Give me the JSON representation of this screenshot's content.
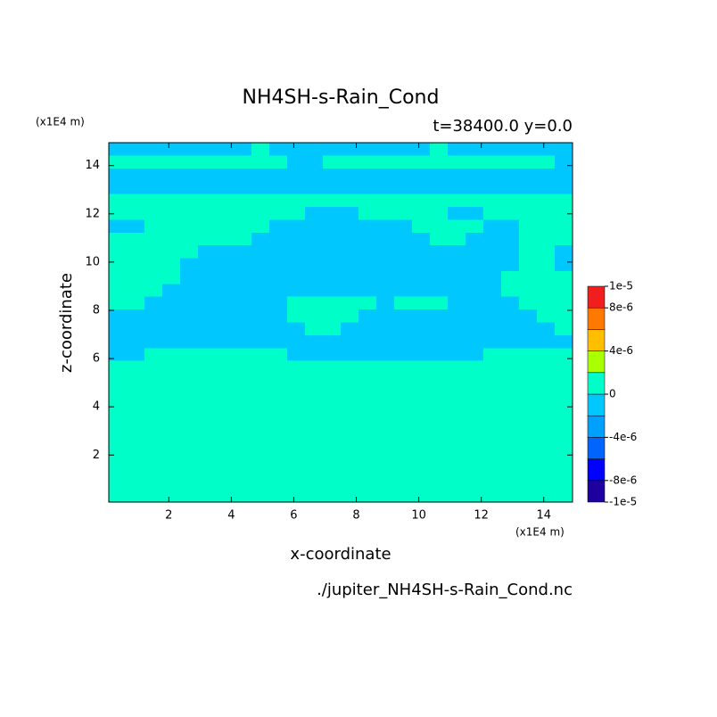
{
  "chart_data": {
    "type": "contour",
    "title": "NH4SH-s-Rain_Cond",
    "subtitle": "t=38400.0 y=0.0",
    "x_label": "x-coordinate",
    "y_label": "z-coordinate",
    "x_unit": "(x1E4 m)",
    "y_unit": "(x1E4 m)",
    "footer": "./jupiter_NH4SH-s-Rain_Cond.nc",
    "xlim": [
      0.08,
      14.92
    ],
    "ylim": [
      0.05,
      14.95
    ],
    "xticks": [
      2,
      4,
      6,
      8,
      10,
      12,
      14
    ],
    "yticks": [
      2,
      4,
      6,
      8,
      10,
      12,
      14
    ],
    "levels": [
      -1e-05,
      -8e-06,
      -6e-06,
      -4e-06,
      -2e-06,
      0,
      2e-06,
      4e-06,
      6e-06,
      8e-06,
      1e-05
    ],
    "colors": [
      "#1e00a0",
      "#0000ff",
      "#0064ff",
      "#00a0ff",
      "#00c8ff",
      "#00ffc8",
      "#aaff00",
      "#ffbe00",
      "#ff7800",
      "#f01e1e",
      "#ff5a5a"
    ],
    "cbar_ticks": [
      {
        "value": 1e-05,
        "label": "1e-5"
      },
      {
        "value": 8e-06,
        "label": "8e-6"
      },
      {
        "value": 4e-06,
        "label": "4e-6"
      },
      0,
      {
        "value": -4e-06,
        "label": "-4e-6"
      },
      {
        "value": -8e-06,
        "label": "-8e-6"
      },
      {
        "value": -1e-05,
        "label": "-1e-5"
      }
    ],
    "grid": [
      [
        -1e-06,
        -1e-06,
        -1e-06,
        -1e-06,
        -1e-06,
        -1e-06,
        -1e-06,
        -1e-06,
        1e-06,
        -1e-06,
        -1e-06,
        -1e-06,
        -1e-06,
        -1e-06,
        -1e-06,
        -1e-06,
        -1e-06,
        -1e-06,
        1e-06,
        -1e-06,
        -1e-06,
        -1e-06,
        -1e-06,
        -1e-06,
        -1e-06,
        -1e-06
      ],
      [
        1e-06,
        1e-06,
        1e-06,
        1e-06,
        1e-06,
        1e-06,
        1e-06,
        1e-06,
        1e-06,
        1e-06,
        -1e-06,
        -1e-06,
        1e-06,
        1e-06,
        1e-06,
        1e-06,
        1e-06,
        1e-06,
        1e-06,
        1e-06,
        1e-06,
        1e-06,
        1e-06,
        1e-06,
        1e-06,
        -1e-06
      ],
      [
        -1e-06,
        -1e-06,
        -1e-06,
        -1e-06,
        -1e-06,
        -1e-06,
        -1e-06,
        -1e-06,
        -1e-06,
        -1e-06,
        -1e-06,
        -1e-06,
        -1e-06,
        -1e-06,
        -1e-06,
        -1e-06,
        -1e-06,
        -1e-06,
        -1e-06,
        -1e-06,
        -1e-06,
        -1e-06,
        -1e-06,
        -1e-06,
        -1e-06,
        -1e-06
      ],
      [
        -1e-06,
        -1e-06,
        -1e-06,
        -1e-06,
        -1e-06,
        -1e-06,
        -1e-06,
        -1e-06,
        -1e-06,
        -1e-06,
        -1e-06,
        -1e-06,
        -1e-06,
        -1e-06,
        -1e-06,
        -1e-06,
        -1e-06,
        -1e-06,
        -1e-06,
        -1e-06,
        -1e-06,
        -1e-06,
        -1e-06,
        -1e-06,
        -1e-06,
        -1e-06
      ],
      [
        1e-06,
        1e-06,
        1e-06,
        1e-06,
        1e-06,
        1e-06,
        1e-06,
        1e-06,
        1e-06,
        1e-06,
        1e-06,
        1e-06,
        1e-06,
        1e-06,
        1e-06,
        1e-06,
        1e-06,
        1e-06,
        1e-06,
        1e-06,
        1e-06,
        1e-06,
        1e-06,
        1e-06,
        1e-06,
        1e-06
      ],
      [
        1e-06,
        1e-06,
        1e-06,
        1e-06,
        1e-06,
        1e-06,
        1e-06,
        1e-06,
        1e-06,
        1e-06,
        1e-06,
        -1e-06,
        -1e-06,
        -1e-06,
        1e-06,
        1e-06,
        1e-06,
        1e-06,
        1e-06,
        -1e-06,
        -1e-06,
        1e-06,
        1e-06,
        1e-06,
        1e-06,
        1e-06
      ],
      [
        -1e-06,
        -1e-06,
        1e-06,
        1e-06,
        1e-06,
        1e-06,
        1e-06,
        1e-06,
        1e-06,
        -1e-06,
        -1e-06,
        -1e-06,
        -1e-06,
        -1e-06,
        -1e-06,
        -1e-06,
        -1e-06,
        1e-06,
        1e-06,
        1e-06,
        1e-06,
        -1e-06,
        -1e-06,
        1e-06,
        1e-06,
        1e-06
      ],
      [
        1e-06,
        1e-06,
        1e-06,
        1e-06,
        1e-06,
        1e-06,
        1e-06,
        1e-06,
        -1e-06,
        -1e-06,
        -1e-06,
        -1e-06,
        -1e-06,
        -1e-06,
        -1e-06,
        -1e-06,
        -1e-06,
        -1e-06,
        1e-06,
        1e-06,
        -1e-06,
        -1e-06,
        -1e-06,
        1e-06,
        1e-06,
        1e-06
      ],
      [
        1e-06,
        1e-06,
        1e-06,
        1e-06,
        1e-06,
        -1e-06,
        -1e-06,
        -1e-06,
        -1e-06,
        -1e-06,
        -1e-06,
        -1e-06,
        -1e-06,
        -1e-06,
        -1e-06,
        -1e-06,
        -1e-06,
        -1e-06,
        -1e-06,
        -1e-06,
        -1e-06,
        -1e-06,
        -1e-06,
        1e-06,
        1e-06,
        -1e-06
      ],
      [
        1e-06,
        1e-06,
        1e-06,
        1e-06,
        -1e-06,
        -1e-06,
        -1e-06,
        -1e-06,
        -1e-06,
        -1e-06,
        -1e-06,
        -1e-06,
        -1e-06,
        -1e-06,
        -1e-06,
        -1e-06,
        -1e-06,
        -1e-06,
        -1e-06,
        -1e-06,
        -1e-06,
        -1e-06,
        -1e-06,
        1e-06,
        1e-06,
        -1e-06
      ],
      [
        1e-06,
        1e-06,
        1e-06,
        1e-06,
        -1e-06,
        -1e-06,
        -1e-06,
        -1e-06,
        -1e-06,
        -1e-06,
        -1e-06,
        -1e-06,
        -1e-06,
        -1e-06,
        -1e-06,
        -1e-06,
        -1e-06,
        -1e-06,
        -1e-06,
        -1e-06,
        -1e-06,
        -1e-06,
        1e-06,
        1e-06,
        1e-06,
        1e-06
      ],
      [
        1e-06,
        1e-06,
        1e-06,
        -1e-06,
        -1e-06,
        -1e-06,
        -1e-06,
        -1e-06,
        -1e-06,
        -1e-06,
        -1e-06,
        -1e-06,
        -1e-06,
        -1e-06,
        -1e-06,
        -1e-06,
        -1e-06,
        -1e-06,
        -1e-06,
        -1e-06,
        -1e-06,
        -1e-06,
        1e-06,
        1e-06,
        1e-06,
        1e-06
      ],
      [
        1e-06,
        1e-06,
        -1e-06,
        -1e-06,
        -1e-06,
        -1e-06,
        -1e-06,
        -1e-06,
        -1e-06,
        -1e-06,
        1e-06,
        1e-06,
        1e-06,
        1e-06,
        1e-06,
        -1e-06,
        1e-06,
        1e-06,
        1e-06,
        -1e-06,
        -1e-06,
        -1e-06,
        -1e-06,
        1e-06,
        1e-06,
        1e-06
      ],
      [
        -1e-06,
        -1e-06,
        -1e-06,
        -1e-06,
        -1e-06,
        -1e-06,
        -1e-06,
        -1e-06,
        -1e-06,
        -1e-06,
        1e-06,
        1e-06,
        1e-06,
        1e-06,
        -1e-06,
        -1e-06,
        -1e-06,
        -1e-06,
        -1e-06,
        -1e-06,
        -1e-06,
        -1e-06,
        -1e-06,
        -1e-06,
        1e-06,
        1e-06
      ],
      [
        -1e-06,
        -1e-06,
        -1e-06,
        -1e-06,
        -1e-06,
        -1e-06,
        -1e-06,
        -1e-06,
        -1e-06,
        -1e-06,
        -1e-06,
        1e-06,
        1e-06,
        -1e-06,
        -1e-06,
        -1e-06,
        -1e-06,
        -1e-06,
        -1e-06,
        -1e-06,
        -1e-06,
        -1e-06,
        -1e-06,
        -1e-06,
        -1e-06,
        1e-06
      ],
      [
        -1e-06,
        -1e-06,
        -1e-06,
        -1e-06,
        -1e-06,
        -1e-06,
        -1e-06,
        -1e-06,
        -1e-06,
        -1e-06,
        -1e-06,
        -1e-06,
        -1e-06,
        -1e-06,
        -1e-06,
        -1e-06,
        -1e-06,
        -1e-06,
        -1e-06,
        -1e-06,
        -1e-06,
        -1e-06,
        -1e-06,
        -1e-06,
        -1e-06,
        -1e-06
      ],
      [
        -1e-06,
        -1e-06,
        1e-06,
        1e-06,
        1e-06,
        1e-06,
        1e-06,
        1e-06,
        1e-06,
        1e-06,
        -1e-06,
        -1e-06,
        -1e-06,
        -1e-06,
        -1e-06,
        -1e-06,
        -1e-06,
        -1e-06,
        -1e-06,
        -1e-06,
        -1e-06,
        1e-06,
        1e-06,
        1e-06,
        1e-06,
        1e-06
      ],
      [
        1e-06,
        1e-06,
        1e-06,
        1e-06,
        1e-06,
        1e-06,
        1e-06,
        1e-06,
        1e-06,
        1e-06,
        1e-06,
        1e-06,
        1e-06,
        1e-06,
        1e-06,
        1e-06,
        1e-06,
        1e-06,
        1e-06,
        1e-06,
        1e-06,
        1e-06,
        1e-06,
        1e-06,
        1e-06,
        1e-06
      ],
      [
        1e-06,
        1e-06,
        1e-06,
        1e-06,
        1e-06,
        1e-06,
        1e-06,
        1e-06,
        1e-06,
        1e-06,
        1e-06,
        1e-06,
        1e-06,
        1e-06,
        1e-06,
        1e-06,
        1e-06,
        1e-06,
        1e-06,
        1e-06,
        1e-06,
        1e-06,
        1e-06,
        1e-06,
        1e-06,
        1e-06
      ],
      [
        1e-06,
        1e-06,
        1e-06,
        1e-06,
        1e-06,
        1e-06,
        1e-06,
        1e-06,
        1e-06,
        1e-06,
        1e-06,
        1e-06,
        1e-06,
        1e-06,
        1e-06,
        1e-06,
        1e-06,
        1e-06,
        1e-06,
        1e-06,
        1e-06,
        1e-06,
        1e-06,
        1e-06,
        1e-06,
        1e-06
      ],
      [
        1e-06,
        1e-06,
        1e-06,
        1e-06,
        1e-06,
        1e-06,
        1e-06,
        1e-06,
        1e-06,
        1e-06,
        1e-06,
        1e-06,
        1e-06,
        1e-06,
        1e-06,
        1e-06,
        1e-06,
        1e-06,
        1e-06,
        1e-06,
        1e-06,
        1e-06,
        1e-06,
        1e-06,
        1e-06,
        1e-06
      ],
      [
        1e-06,
        1e-06,
        1e-06,
        1e-06,
        1e-06,
        1e-06,
        1e-06,
        1e-06,
        1e-06,
        1e-06,
        1e-06,
        1e-06,
        1e-06,
        1e-06,
        1e-06,
        1e-06,
        1e-06,
        1e-06,
        1e-06,
        1e-06,
        1e-06,
        1e-06,
        1e-06,
        1e-06,
        1e-06,
        1e-06
      ],
      [
        1e-06,
        1e-06,
        1e-06,
        1e-06,
        1e-06,
        1e-06,
        1e-06,
        1e-06,
        1e-06,
        1e-06,
        1e-06,
        1e-06,
        1e-06,
        1e-06,
        1e-06,
        1e-06,
        1e-06,
        1e-06,
        1e-06,
        1e-06,
        1e-06,
        1e-06,
        1e-06,
        1e-06,
        1e-06,
        1e-06
      ],
      [
        1e-06,
        1e-06,
        1e-06,
        1e-06,
        1e-06,
        1e-06,
        1e-06,
        1e-06,
        1e-06,
        1e-06,
        1e-06,
        1e-06,
        1e-06,
        1e-06,
        1e-06,
        1e-06,
        1e-06,
        1e-06,
        1e-06,
        1e-06,
        1e-06,
        1e-06,
        1e-06,
        1e-06,
        1e-06,
        1e-06
      ],
      [
        1e-06,
        1e-06,
        1e-06,
        1e-06,
        1e-06,
        1e-06,
        1e-06,
        1e-06,
        1e-06,
        1e-06,
        1e-06,
        1e-06,
        1e-06,
        1e-06,
        1e-06,
        1e-06,
        1e-06,
        1e-06,
        1e-06,
        1e-06,
        1e-06,
        1e-06,
        1e-06,
        1e-06,
        1e-06,
        1e-06
      ],
      [
        1e-06,
        1e-06,
        1e-06,
        1e-06,
        1e-06,
        1e-06,
        1e-06,
        1e-06,
        1e-06,
        1e-06,
        1e-06,
        1e-06,
        1e-06,
        1e-06,
        1e-06,
        1e-06,
        1e-06,
        1e-06,
        1e-06,
        1e-06,
        1e-06,
        1e-06,
        1e-06,
        1e-06,
        1e-06,
        1e-06
      ],
      [
        1e-06,
        1e-06,
        1e-06,
        1e-06,
        1e-06,
        1e-06,
        1e-06,
        1e-06,
        1e-06,
        1e-06,
        1e-06,
        1e-06,
        1e-06,
        1e-06,
        1e-06,
        1e-06,
        1e-06,
        1e-06,
        1e-06,
        1e-06,
        1e-06,
        1e-06,
        1e-06,
        1e-06,
        1e-06,
        1e-06
      ],
      [
        1e-06,
        1e-06,
        1e-06,
        1e-06,
        1e-06,
        1e-06,
        1e-06,
        1e-06,
        1e-06,
        1e-06,
        1e-06,
        1e-06,
        1e-06,
        1e-06,
        1e-06,
        1e-06,
        1e-06,
        1e-06,
        1e-06,
        1e-06,
        1e-06,
        1e-06,
        1e-06,
        1e-06,
        1e-06,
        1e-06
      ]
    ]
  }
}
